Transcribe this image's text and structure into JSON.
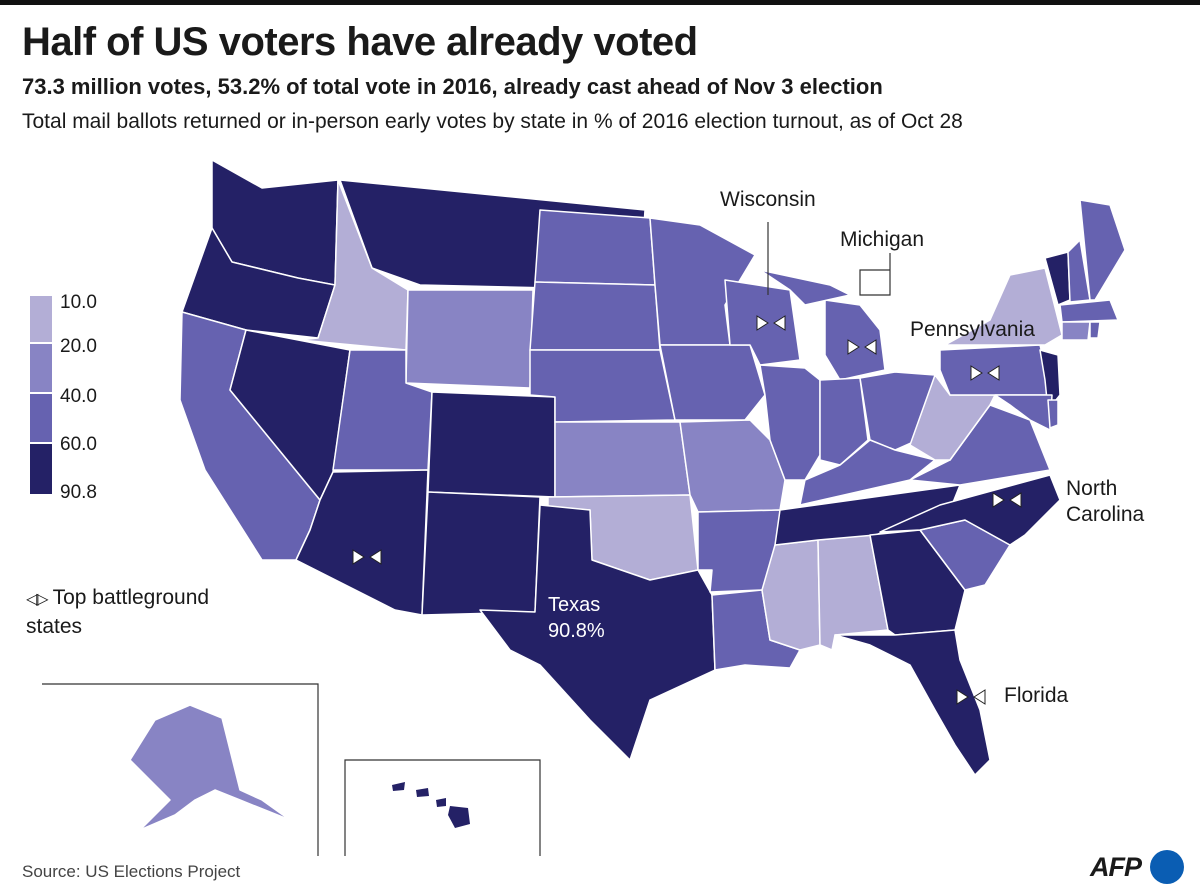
{
  "header": {
    "title": "Half of US voters have already voted",
    "subtitle": "73.3 million votes, 53.2% of total vote in 2016, already cast ahead of Nov 3 election",
    "description": "Total mail ballots returned or in-person early votes by state in % of 2016 election turnout,  as of Oct 28"
  },
  "legend": {
    "ticks": [
      "10.0",
      "20.0",
      "40.0",
      "60.0",
      "90.8"
    ],
    "colors": [
      "#b3aed6",
      "#8884c4",
      "#6662b0",
      "#242166"
    ]
  },
  "battleground_legend": {
    "line1": "Top battleground",
    "line2": "states"
  },
  "callouts": {
    "wisconsin": "Wisconsin",
    "michigan": "Michigan",
    "pennsylvania": "Pennsylvania",
    "north_carolina_1": "North",
    "north_carolina_2": "Carolina",
    "florida": "Florida",
    "texas_name": "Texas",
    "texas_value": "90.8%"
  },
  "footer": {
    "source": "Source: US Elections Project",
    "logo": "AFP"
  }
}
